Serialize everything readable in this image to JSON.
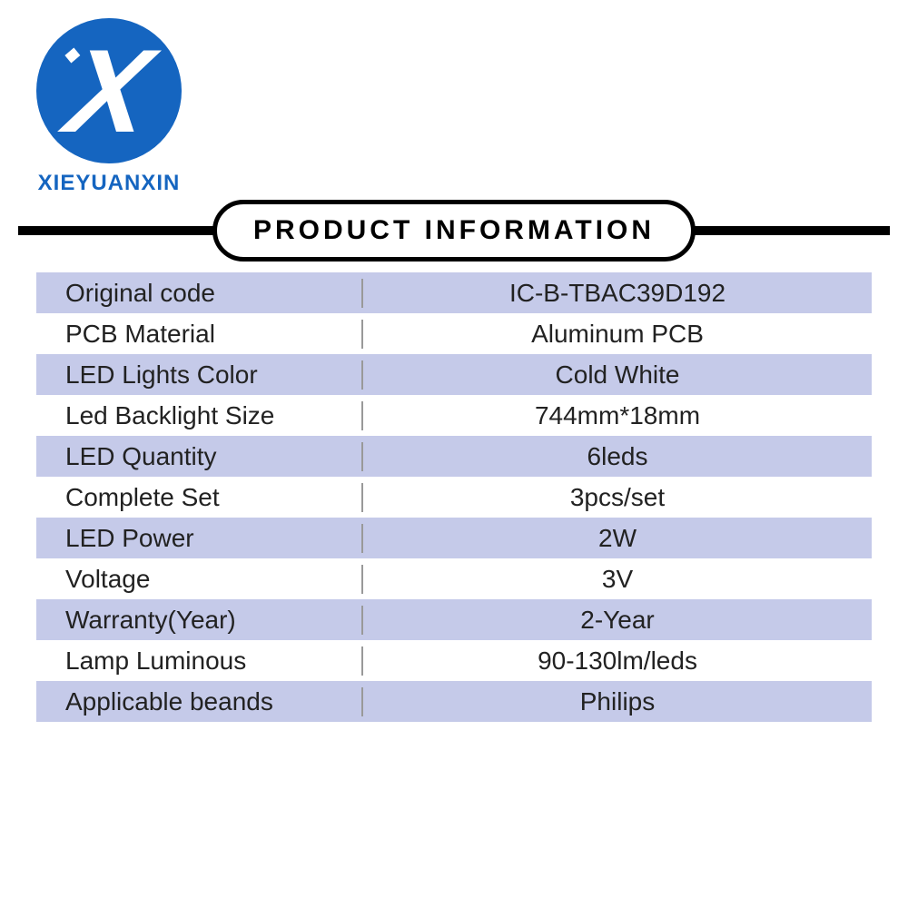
{
  "brand": {
    "name": "XIEYUANXIN",
    "logo_letter": "X",
    "logo_bg_color": "#1565c0",
    "logo_text_color": "#1565c0"
  },
  "header": {
    "title": "PRODUCT INFORMATION"
  },
  "table": {
    "colors": {
      "odd_row_bg": "#c5cae9",
      "even_row_bg": "#ffffff",
      "text_color": "#222222",
      "divider_color": "#999999"
    },
    "font_size": 28,
    "rows": [
      {
        "label": "Original code",
        "value": "IC-B-TBAC39D192"
      },
      {
        "label": "PCB Material",
        "value": "Aluminum PCB"
      },
      {
        "label": "LED Lights Color",
        "value": "Cold White"
      },
      {
        "label": "Led Backlight Size",
        "value": "744mm*18mm"
      },
      {
        "label": "LED Quantity",
        "value": "6leds"
      },
      {
        "label": "Complete Set",
        "value": "3pcs/set"
      },
      {
        "label": "LED Power",
        "value": "2W"
      },
      {
        "label": "Voltage",
        "value": "3V"
      },
      {
        "label": "Warranty(Year)",
        "value": "2-Year"
      },
      {
        "label": "Lamp Luminous",
        "value": "90-130lm/leds"
      },
      {
        "label": "Applicable beands",
        "value": "Philips"
      }
    ]
  }
}
